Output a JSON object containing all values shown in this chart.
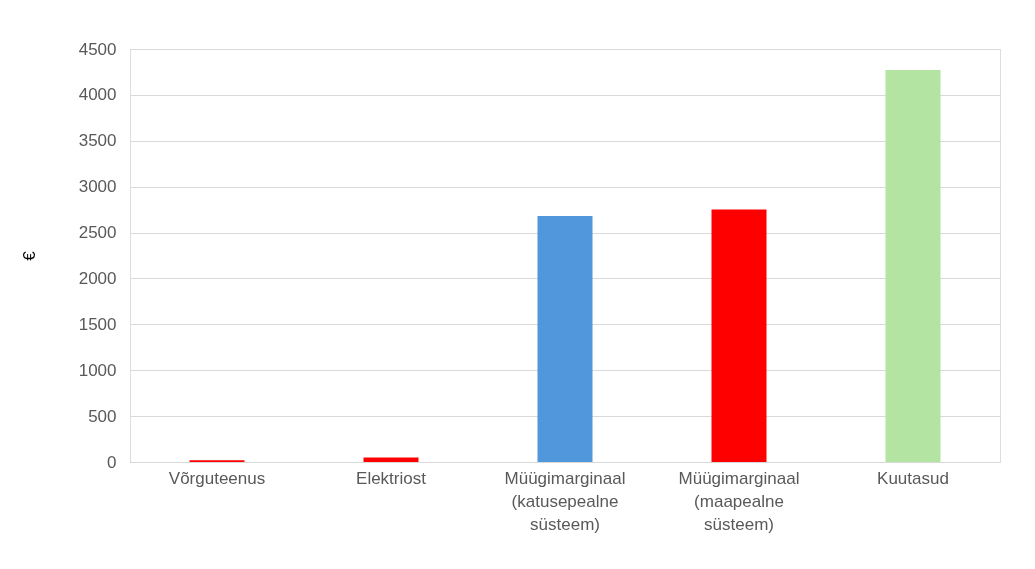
{
  "chart_data": {
    "type": "bar",
    "ylabel": "€",
    "categories": [
      "Võrguteenus",
      "Elektriost",
      "Müügimarginaal (katusepealne süsteem)",
      "Müügimarginaal (maapealne süsteem)",
      "Kuutasud"
    ],
    "values": [
      20,
      50,
      2680,
      2750,
      4270
    ],
    "colors": [
      "#ff0000",
      "#ff0000",
      "#5197db",
      "#ff0000",
      "#b4e4a1"
    ],
    "ylim": [
      0,
      4500
    ],
    "yticks": [
      0,
      500,
      1000,
      1500,
      2000,
      2500,
      3000,
      3500,
      4000,
      4500
    ],
    "grid": "y"
  }
}
